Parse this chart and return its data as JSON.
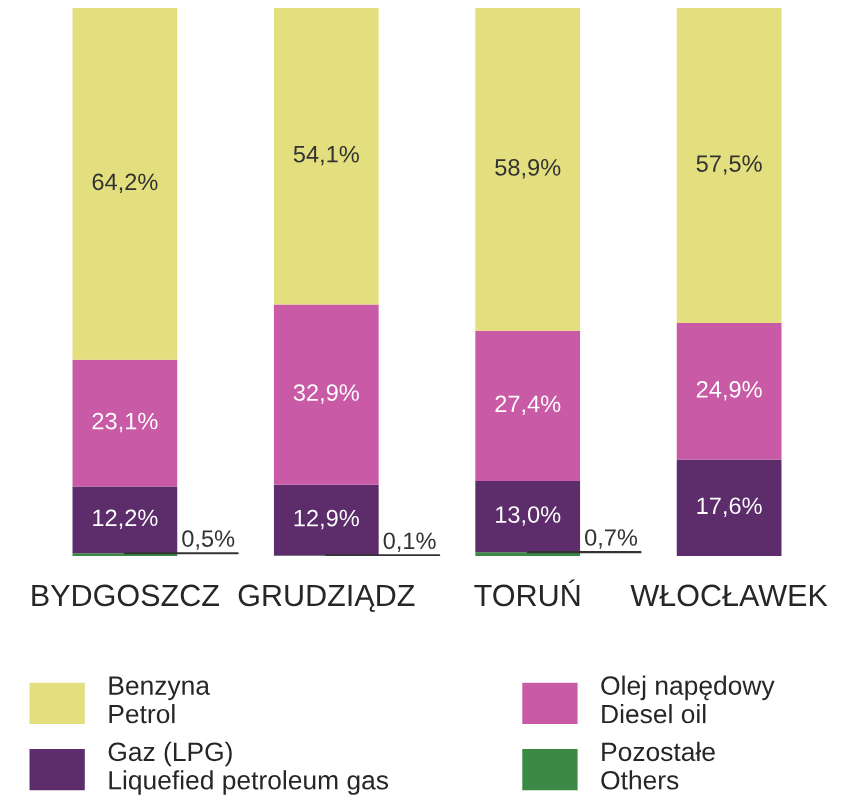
{
  "chart_data": {
    "type": "bar",
    "stacked": true,
    "categories": [
      "BYDGOSZCZ",
      "GRUDZIĄDZ",
      "TORUŃ",
      "WŁOCŁAWEK"
    ],
    "series": [
      {
        "name": "Pozostałe\nOthers",
        "color": "#3a8a45",
        "values": [
          0.5,
          0.1,
          0.7,
          null
        ],
        "value_labels": [
          "0,5%",
          "0,1%",
          "0,7%",
          null
        ]
      },
      {
        "name": "Gaz (LPG)\nLiquefied petroleum gas",
        "color": "#5c2d6a",
        "values": [
          12.2,
          12.9,
          13.0,
          17.6
        ],
        "value_labels": [
          "12,2%",
          "12,9%",
          "13,0%",
          "17,6%"
        ]
      },
      {
        "name": "Olej napędowy\nDiesel oil",
        "color": "#c95aa6",
        "values": [
          23.1,
          32.9,
          27.4,
          24.9
        ],
        "value_labels": [
          "23,1%",
          "32,9%",
          "27,4%",
          "24,9%"
        ]
      },
      {
        "name": "Benzyna\nPetrol",
        "color": "#e3de7e",
        "values": [
          64.2,
          54.1,
          58.9,
          57.5
        ],
        "value_labels": [
          "64,2%",
          "54,1%",
          "58,9%",
          "57,5%"
        ]
      }
    ],
    "legend": "bottom",
    "grid": false,
    "tick_labels": "x"
  }
}
